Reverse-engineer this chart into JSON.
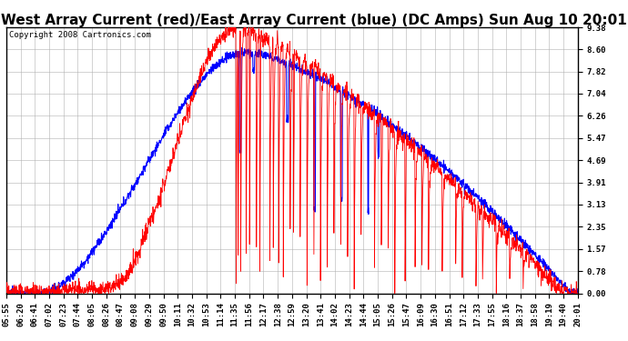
{
  "title": "West Array Current (red)/East Array Current (blue) (DC Amps) Sun Aug 10 20:01",
  "copyright": "Copyright 2008 Cartronics.com",
  "background_color": "#ffffff",
  "plot_bg_color": "#ffffff",
  "grid_color": "#b0b0b0",
  "red_color": "#ff0000",
  "blue_color": "#0000ff",
  "yticks": [
    0.0,
    0.78,
    1.57,
    2.35,
    3.13,
    3.91,
    4.69,
    5.47,
    6.26,
    7.04,
    7.82,
    8.6,
    9.38
  ],
  "xtick_labels": [
    "05:55",
    "06:20",
    "06:41",
    "07:02",
    "07:23",
    "07:44",
    "08:05",
    "08:26",
    "08:47",
    "09:08",
    "09:29",
    "09:50",
    "10:11",
    "10:32",
    "10:53",
    "11:14",
    "11:35",
    "11:56",
    "12:17",
    "12:38",
    "12:59",
    "13:20",
    "13:41",
    "14:02",
    "14:23",
    "14:44",
    "15:05",
    "15:26",
    "15:47",
    "16:09",
    "16:30",
    "16:51",
    "17:12",
    "17:33",
    "17:55",
    "18:16",
    "18:37",
    "18:58",
    "19:19",
    "19:40",
    "20:01"
  ],
  "ylim": [
    0.0,
    9.38
  ],
  "title_fontsize": 11,
  "tick_fontsize": 6.5,
  "copyright_fontsize": 6.5
}
